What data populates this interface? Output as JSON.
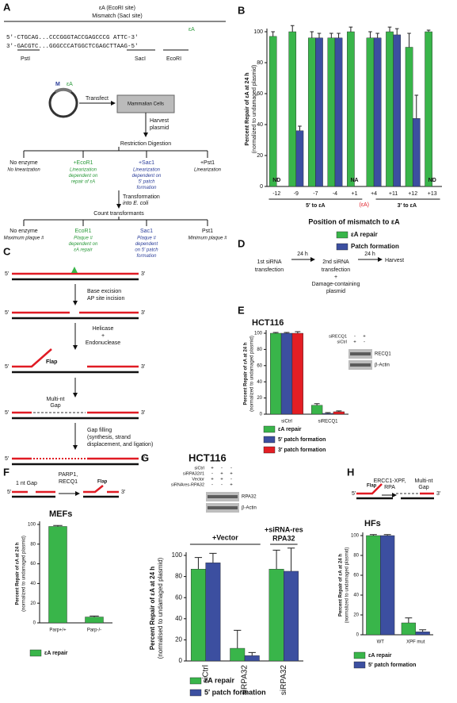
{
  "panel_labels": [
    "A",
    "B",
    "C",
    "D",
    "E",
    "F",
    "G",
    "H"
  ],
  "panel_a": {
    "site_title": "εA (EcoRI site)",
    "site_subtitle": "Mismatch (SacI site)",
    "ea_mark": "εA",
    "top_strand": "5′-CTGCAG...CCCGGGTACCGAGCCCG ATTC-3′",
    "bottom_strand": "3′-GACGTC...GGGCCCATGGCTCGAGCTTAAG-5′",
    "sites": [
      "PstI",
      "SacI",
      "EcoRI"
    ],
    "plasmid_labels": [
      "M",
      "εA"
    ],
    "transfect": "Transfect",
    "cells": [
      "Mammalian Cells"
    ],
    "harvest": [
      "Harvest",
      "plasmid"
    ],
    "digestion": "Restriction Digestion",
    "digests": [
      {
        "name": "No enzyme",
        "desc": [
          "No linearization"
        ]
      },
      {
        "name": "+EcoR1",
        "desc": [
          "Linearization",
          "dependent on",
          "repair of εA"
        ]
      },
      {
        "name": "+Sac1",
        "desc": [
          "Linearization",
          "dependent on",
          "5′ patch",
          "formation"
        ]
      },
      {
        "name": "+Pst1",
        "desc": [
          "Linearization"
        ]
      }
    ],
    "transformation": [
      "Transformation",
      "into E. coli"
    ],
    "count": "Count transformants",
    "counts": [
      {
        "name": "No enzyme",
        "desc": [
          "Maximum plaque #"
        ]
      },
      {
        "name": "EcoR1",
        "desc": [
          "Plaque #",
          "dependent on",
          "εA repair"
        ]
      },
      {
        "name": "Sac1",
        "desc": [
          "Plaque #",
          "dependent",
          "on 5′ patch",
          "formation"
        ]
      },
      {
        "name": "Pst1",
        "desc": [
          "Minimum plaque #"
        ]
      }
    ]
  },
  "panel_c": {
    "end5": "5′",
    "end3": "3′",
    "step1": [
      "Base excision",
      "AP site incision"
    ],
    "step2": [
      "Helicase",
      "+",
      "Endonuclease"
    ],
    "flap": "Flap",
    "gap": [
      "Multi-nt",
      "Gap"
    ],
    "step3": [
      "Gap filling",
      "(synthesis, strand",
      "displacement, and ligation)"
    ]
  },
  "panel_d": {
    "first": [
      "1st siRNA",
      "transfection"
    ],
    "interval": "24 h",
    "second": [
      "2nd siRNA",
      "transfection",
      "+",
      "Damage-containing",
      "plasmid"
    ],
    "harvest": "Harvest"
  },
  "chart_data": [
    {
      "type": "bar",
      "y_label": [
        "Percent Repair of εA at 24 h",
        "(normalized to undamaged plasmid)"
      ],
      "x_label": "Position of mismatch to εA",
      "categories": [
        "-12",
        "-9",
        "-7",
        "-4",
        "+1",
        "+4",
        "+11",
        "+12",
        "+13"
      ],
      "series": [
        {
          "name": "εA repair",
          "color": "#39b54a",
          "values": [
            97,
            100,
            96,
            96,
            100,
            96,
            100,
            90,
            100
          ],
          "errors": [
            3,
            4,
            4,
            3,
            3,
            4,
            3,
            9,
            1
          ]
        },
        {
          "name": "Patch formation",
          "color": "#3c4fa0",
          "values": [
            null,
            36,
            96,
            96,
            null,
            96,
            98,
            44,
            null
          ],
          "errors": [
            null,
            3,
            3,
            3,
            null,
            3,
            4,
            15,
            null
          ]
        }
      ],
      "annotations": [
        "ND",
        "NA",
        "ND"
      ],
      "ea_label": "(εA)",
      "group_labels": [
        "5′ to εA",
        "3′ to εA"
      ],
      "ylim": [
        0,
        100
      ],
      "yticks": [
        0,
        20,
        40,
        60,
        80,
        100
      ]
    },
    {
      "type": "bar",
      "title": "HCT116",
      "y_label": [
        "Percent Repair of εA at 24 h",
        "(normalized to undamaged plasmid)"
      ],
      "categories": [
        "siCtrl",
        "siRECQ1"
      ],
      "series": [
        {
          "name": "εA repair",
          "color": "#39b54a",
          "values": [
            100,
            11
          ],
          "errors": [
            1,
            2
          ]
        },
        {
          "name": "5′ patch formation",
          "color": "#3c4fa0",
          "values": [
            100,
            1
          ],
          "errors": [
            1,
            1
          ]
        },
        {
          "name": "3′ patch formation",
          "color": "#e31e24",
          "values": [
            100,
            3
          ],
          "errors": [
            2,
            1
          ]
        }
      ],
      "blot": {
        "rows": [
          {
            "label": "siRECQ1",
            "marks": [
              "-",
              "+"
            ]
          },
          {
            "label": "siCtrl",
            "marks": [
              "+",
              "-"
            ]
          }
        ],
        "bands": [
          "RECQ1",
          "β-Actin"
        ]
      },
      "ylim": [
        0,
        100
      ],
      "yticks": [
        0,
        20,
        40,
        60,
        80,
        100
      ]
    },
    {
      "type": "bar",
      "title": "MEFs",
      "y_label": [
        "Percent Repair of εA at 24 h",
        "(normalized to undamaged plasmid)"
      ],
      "categories": [
        "Parp+/+",
        "Parp-/-"
      ],
      "series": [
        {
          "name": "εA repair",
          "color": "#39b54a",
          "values": [
            98,
            6
          ],
          "errors": [
            1,
            1
          ]
        }
      ],
      "scheme": {
        "gap": "1 nt Gap",
        "enzymes": [
          "PARP1,",
          "RECQ1"
        ],
        "flap": "Flap",
        "end5": "5′",
        "end3": "3′"
      },
      "ylim": [
        0,
        100
      ],
      "yticks": [
        0,
        20,
        40,
        60,
        80,
        100
      ]
    },
    {
      "type": "bar",
      "title": "HCT116",
      "y_label": [
        "Percent Repair of εA at 24 h",
        "(normalised to undamaged plasmid)"
      ],
      "categories": [
        "siCtrl",
        "siRPA32",
        "siRPA32"
      ],
      "series": [
        {
          "name": "εA repair",
          "color": "#39b54a",
          "values": [
            87,
            12,
            87
          ],
          "errors": [
            11,
            17,
            18
          ]
        },
        {
          "name": "5′ patch formation",
          "color": "#3c4fa0",
          "values": [
            93,
            5,
            85
          ],
          "errors": [
            9,
            3,
            22
          ]
        }
      ],
      "group_labels": [
        [
          "+Vector"
        ],
        [
          "+siRNA-res",
          "RPA32"
        ]
      ],
      "blot": {
        "rows": [
          {
            "label": "siCtrl",
            "marks": [
              "+",
              "-",
              "-"
            ]
          },
          {
            "label": "siRPA32#1",
            "marks": [
              "-",
              "+",
              "+"
            ]
          },
          {
            "label": "Vector",
            "marks": [
              "+",
              "+",
              "-"
            ]
          },
          {
            "label": "siRNAres-RPA32",
            "marks": [
              "-",
              "-",
              "+"
            ]
          }
        ],
        "bands": [
          "RPA32",
          "β-Actin"
        ]
      },
      "ylim": [
        0,
        100
      ],
      "yticks": [
        0,
        20,
        40,
        60,
        80,
        100
      ]
    },
    {
      "type": "bar",
      "title": "HFs",
      "y_label": [
        "Percent Repair of εA at 24 h",
        "(normalized to undamaged plasmid)"
      ],
      "categories": [
        "WT",
        "XPF mut"
      ],
      "series": [
        {
          "name": "εA repair",
          "color": "#39b54a",
          "values": [
            100,
            12
          ],
          "errors": [
            1,
            5
          ]
        },
        {
          "name": "5′ patch formation",
          "color": "#3c4fa0",
          "values": [
            100,
            3
          ],
          "errors": [
            1,
            2
          ]
        }
      ],
      "scheme": {
        "flap": "Flap",
        "enzymes": [
          "ERCC1-XPF,",
          "RPA"
        ],
        "gap": [
          "Multi-nt",
          "Gap"
        ],
        "end5": "5′",
        "end3": "3′"
      },
      "ylim": [
        0,
        100
      ],
      "yticks": [
        0,
        20,
        40,
        60,
        80,
        100
      ]
    }
  ]
}
